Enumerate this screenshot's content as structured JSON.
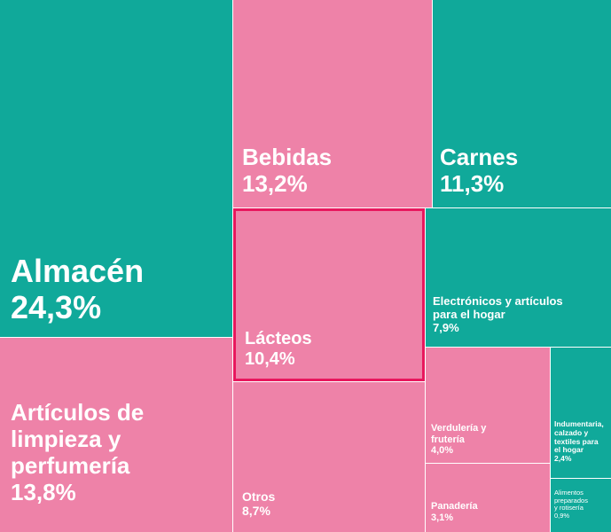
{
  "chart_data": {
    "type": "treemap",
    "colors": {
      "teal": "#10a99a",
      "pink": "#ee82a8",
      "highlight": "#e8175d"
    },
    "tiles": [
      {
        "id": "almacen",
        "label": "Almacén",
        "value_label": "24,3%",
        "value": 24.3,
        "color": "teal"
      },
      {
        "id": "articulos-limpieza",
        "label": "Artículos de\nlimpieza y\nperfumería",
        "value_label": "13,8%",
        "value": 13.8,
        "color": "pink"
      },
      {
        "id": "bebidas",
        "label": "Bebidas",
        "value_label": "13,2%",
        "value": 13.2,
        "color": "pink"
      },
      {
        "id": "lacteos",
        "label": "Lácteos",
        "value_label": "10,4%",
        "value": 10.4,
        "color": "pink",
        "highlighted": true
      },
      {
        "id": "otros",
        "label": "Otros",
        "value_label": "8,7%",
        "value": 8.7,
        "color": "pink"
      },
      {
        "id": "carnes",
        "label": "Carnes",
        "value_label": "11,3%",
        "value": 11.3,
        "color": "teal"
      },
      {
        "id": "electronicos",
        "label": "Electrónicos y artículos\npara el hogar",
        "value_label": "7,9%",
        "value": 7.9,
        "color": "teal"
      },
      {
        "id": "verduleria",
        "label": "Verdulería y\nfrutería",
        "value_label": "4,0%",
        "value": 4.0,
        "color": "pink"
      },
      {
        "id": "panaderia",
        "label": "Panadería",
        "value_label": "3,1%",
        "value": 3.1,
        "color": "pink"
      },
      {
        "id": "indumentaria",
        "label": "Indumentaria,\ncalzado y\ntextiles para\nel hogar",
        "value_label": "2,4%",
        "value": 2.4,
        "color": "teal"
      },
      {
        "id": "alimentos-preparados",
        "label": "Alimentos\npreparados\ny rotisería",
        "value_label": "0,9%",
        "value": 0.9,
        "color": "teal"
      }
    ]
  }
}
